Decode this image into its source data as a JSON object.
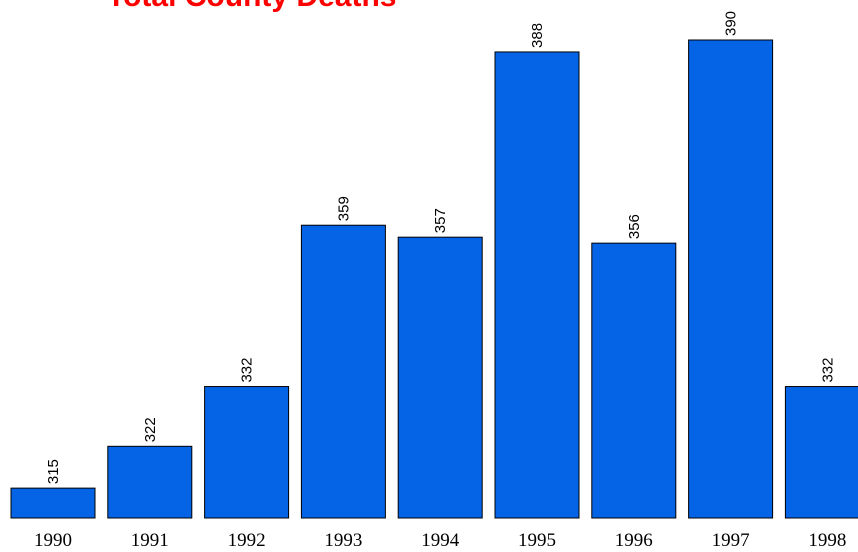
{
  "chart_data": {
    "type": "bar",
    "title": "Total County Deaths",
    "categories": [
      "1990",
      "1991",
      "1992",
      "1993",
      "1994",
      "1995",
      "1996",
      "1997",
      "1998"
    ],
    "values": [
      315,
      322,
      332,
      359,
      357,
      388,
      356,
      390,
      332
    ],
    "data_labels": [
      "315",
      "322",
      "332",
      "359",
      "357",
      "388",
      "356",
      "390",
      "332"
    ],
    "xlabel": "",
    "ylabel": "",
    "ylim": [
      310,
      390
    ],
    "grid": false,
    "bar_color": "#0563e6",
    "title_color": "#ff0000"
  }
}
